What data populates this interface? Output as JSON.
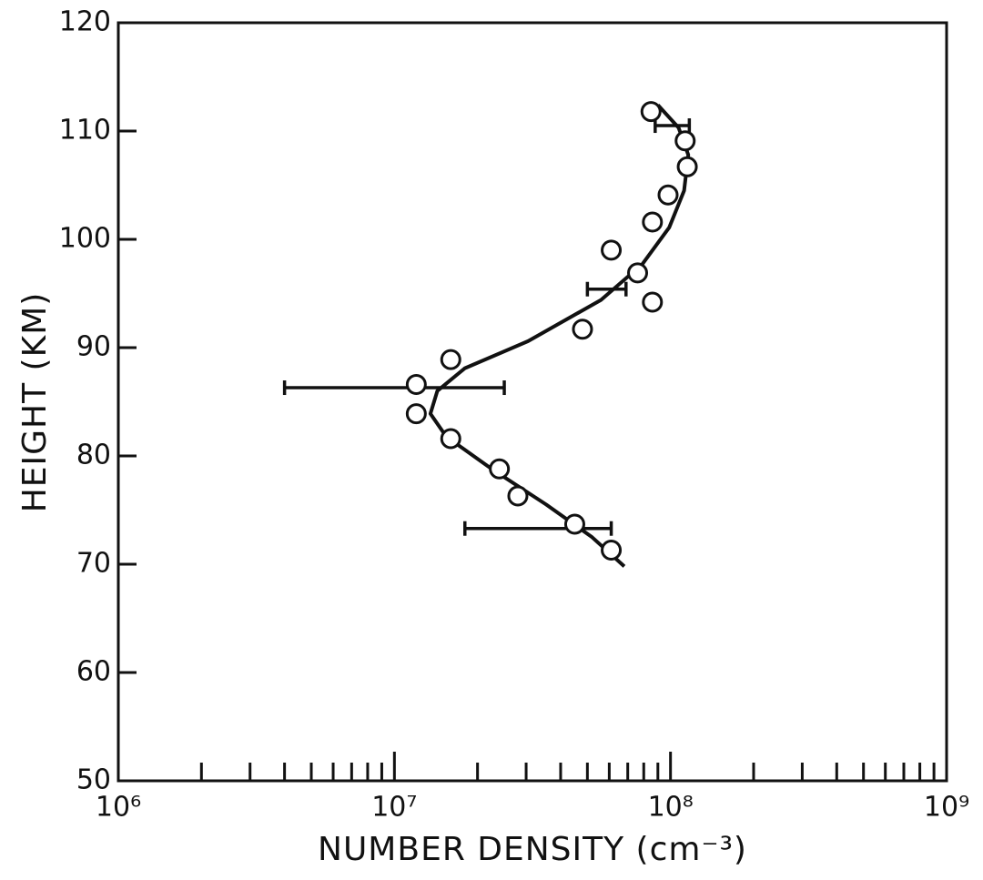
{
  "chart_data": {
    "type": "scatter",
    "xlabel": "NUMBER DENSITY (cm⁻³)",
    "ylabel": "HEIGHT (KM)",
    "xscale": "log",
    "xlim": [
      1000000,
      1000000000
    ],
    "ylim": [
      50,
      120
    ],
    "xticks": [
      {
        "value": 1000000,
        "label": "10⁶"
      },
      {
        "value": 10000000,
        "label": "10⁷"
      },
      {
        "value": 100000000,
        "label": "10⁸"
      },
      {
        "value": 1000000000,
        "label": "10⁹"
      }
    ],
    "xminorticks": [
      2000000,
      3000000,
      4000000,
      5000000,
      6000000,
      7000000,
      8000000,
      9000000,
      20000000,
      30000000,
      40000000,
      50000000,
      60000000,
      70000000,
      80000000,
      90000000,
      200000000,
      300000000,
      400000000,
      500000000,
      600000000,
      700000000,
      800000000,
      900000000
    ],
    "yticks": [
      50,
      60,
      70,
      80,
      90,
      100,
      110,
      120
    ],
    "color": "#111111",
    "points": {
      "x": [
        85000000,
        113000000,
        115000000,
        98000000,
        86000000,
        61000000,
        76000000,
        86000000,
        48000000,
        16000000,
        12000000,
        12000000,
        16000000,
        24000000,
        28000000,
        45000000,
        61000000
      ],
      "y": [
        111.8,
        109.1,
        106.7,
        104.1,
        101.6,
        99.0,
        96.9,
        94.2,
        91.7,
        88.9,
        86.6,
        83.9,
        81.6,
        78.8,
        76.3,
        73.7,
        71.3
      ]
    },
    "fit": {
      "x": [
        90000000,
        107000000,
        116000000,
        112000000,
        99000000,
        79000000,
        56000000,
        30500000,
        18000000,
        14300000,
        13500000,
        15400000,
        22500000,
        35500000,
        52000000,
        68000000
      ],
      "y": [
        112.4,
        110.3,
        107.8,
        104.5,
        101.1,
        97.7,
        94.4,
        90.6,
        88.1,
        86.0,
        83.9,
        81.8,
        78.8,
        75.5,
        72.5,
        69.8
      ]
    },
    "error_bars": [
      {
        "y": 110.5,
        "low": 88000000,
        "high": 117000000
      },
      {
        "y": 95.4,
        "low": 50000000,
        "high": 69000000
      },
      {
        "y": 86.3,
        "low": 4000000,
        "high": 25000000
      },
      {
        "y": 73.3,
        "low": 18000000,
        "high": 61000000
      }
    ]
  }
}
